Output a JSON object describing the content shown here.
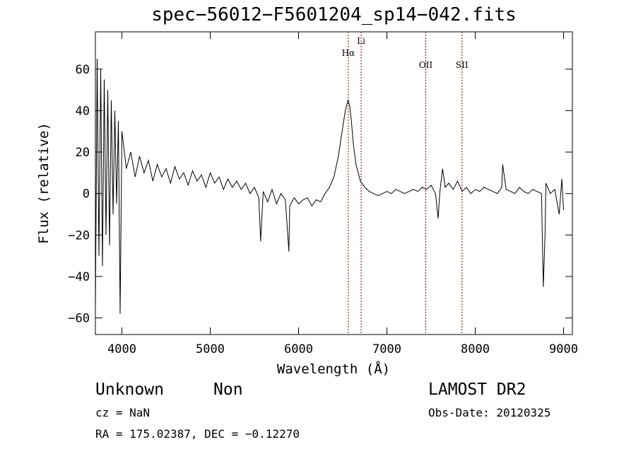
{
  "chart_data": {
    "type": "line",
    "title": "spec−56012−F5601204_sp14−042.fits",
    "xlabel": "Wavelength (Å)",
    "ylabel": "Flux (relative)",
    "xlim": [
      3700,
      9100
    ],
    "ylim": [
      -68,
      78
    ],
    "xticks": [
      4000,
      5000,
      6000,
      7000,
      8000,
      9000
    ],
    "yticks": [
      -60,
      -40,
      -20,
      0,
      20,
      40,
      60
    ],
    "ytick_labels": [
      "−60",
      "−40",
      "−20",
      "0",
      "20",
      "40",
      "60"
    ],
    "grid": false,
    "line_color": "#000000",
    "marker_color": "#8b0000",
    "series": [
      {
        "x": [
          3700,
          3720,
          3740,
          3760,
          3780,
          3800,
          3820,
          3840,
          3860,
          3880,
          3900,
          3920,
          3940,
          3960,
          3980,
          4000,
          4050,
          4100,
          4150,
          4200,
          4250,
          4300,
          4350,
          4400,
          4450,
          4500,
          4550,
          4600,
          4650,
          4700,
          4750,
          4800,
          4850,
          4900,
          4950,
          5000,
          5050,
          5100,
          5150,
          5200,
          5250,
          5300,
          5350,
          5400,
          5450,
          5500,
          5550,
          5570,
          5600,
          5650,
          5700,
          5750,
          5800,
          5850,
          5890,
          5900,
          5950,
          6000,
          6050,
          6100,
          6150,
          6200,
          6250,
          6300,
          6350,
          6400,
          6450,
          6500,
          6530,
          6560,
          6580,
          6600,
          6620,
          6650,
          6700,
          6750,
          6800,
          6850,
          6900,
          6950,
          7000,
          7050,
          7100,
          7150,
          7200,
          7250,
          7300,
          7350,
          7400,
          7450,
          7500,
          7550,
          7580,
          7600,
          7630,
          7660,
          7700,
          7750,
          7800,
          7850,
          7900,
          7950,
          8000,
          8050,
          8100,
          8150,
          8200,
          8250,
          8300,
          8310,
          8350,
          8400,
          8450,
          8500,
          8550,
          8600,
          8650,
          8700,
          8750,
          8770,
          8790,
          8800,
          8850,
          8900,
          8950,
          8980,
          9000
        ],
        "y": [
          -55,
          65,
          -30,
          60,
          -35,
          55,
          -20,
          50,
          -25,
          45,
          -10,
          40,
          -5,
          35,
          -58,
          30,
          12,
          20,
          8,
          18,
          10,
          16,
          6,
          14,
          8,
          12,
          5,
          13,
          7,
          10,
          4,
          11,
          6,
          9,
          3,
          10,
          5,
          8,
          2,
          7,
          3,
          6,
          2,
          5,
          0,
          3,
          -2,
          -23,
          1,
          -4,
          2,
          -5,
          0,
          -3,
          -28,
          -6,
          -2,
          -5,
          -3,
          -2,
          -6,
          -3,
          -4,
          0,
          3,
          8,
          18,
          32,
          40,
          45,
          42,
          34,
          24,
          14,
          6,
          3,
          1,
          0,
          -1,
          0,
          1,
          0,
          2,
          1,
          0,
          1,
          2,
          1,
          3,
          2,
          4,
          0,
          -12,
          1,
          12,
          3,
          5,
          2,
          6,
          1,
          3,
          0,
          2,
          1,
          3,
          2,
          1,
          0,
          3,
          14,
          2,
          1,
          0,
          3,
          1,
          0,
          2,
          1,
          0,
          -45,
          -20,
          5,
          0,
          2,
          -10,
          7,
          -8
        ]
      }
    ],
    "markers": [
      {
        "label": "Hα",
        "x": 6563
      },
      {
        "label": "Li",
        "x": 6708
      },
      {
        "label": "OII",
        "x": 7440
      },
      {
        "label": "SII",
        "x": 7850
      }
    ]
  },
  "info": {
    "class_label": "Unknown",
    "subclass_label": "Non",
    "survey": "LAMOST DR2",
    "cz": "cz = NaN",
    "obs_date": "Obs-Date: 20120325",
    "coords": "RA = 175.02387, DEC =  −0.12270"
  }
}
